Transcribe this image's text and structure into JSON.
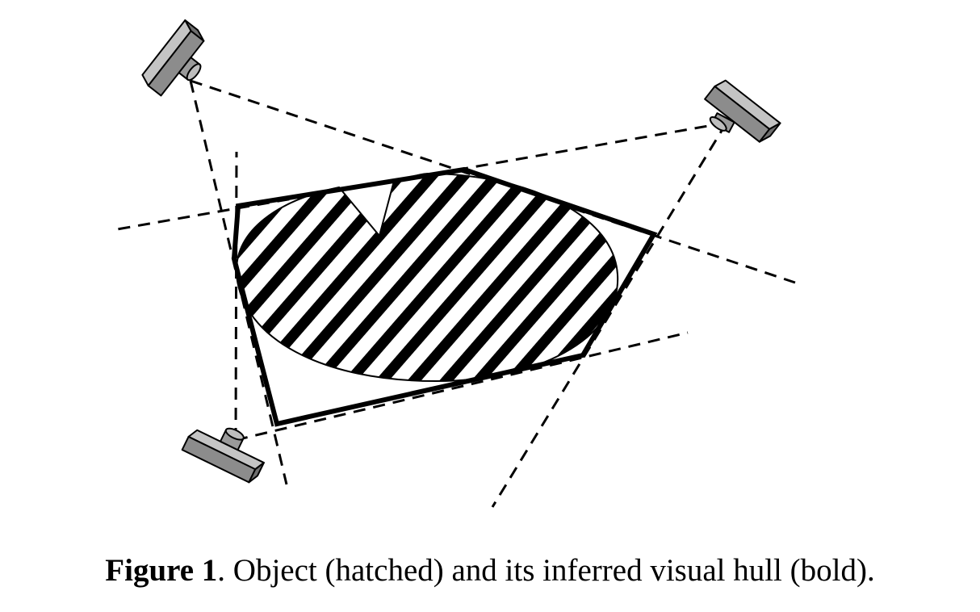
{
  "figure": {
    "caption_label": "Figure 1",
    "caption_text": ". Object (hatched) and its inferred visual hull (bold)."
  },
  "colors": {
    "ink": "#000000",
    "camera_fill": "#8c8c8c",
    "camera_top": "#c4c4c4",
    "background": "#ffffff"
  },
  "icons": [
    "camera-icon"
  ]
}
